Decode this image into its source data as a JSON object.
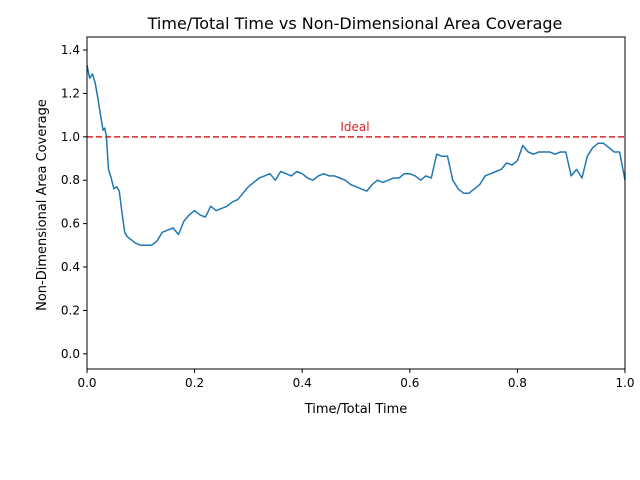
{
  "chart_data": {
    "type": "line",
    "title": "Time/Total Time vs Non-Dimensional Area Coverage",
    "xlabel": "Time/Total Time",
    "ylabel": "Non-Dimensional Area Coverage",
    "xlim": [
      0.0,
      1.0
    ],
    "ylim": [
      -0.07,
      1.46
    ],
    "xticks": [
      "0.0",
      "0.2",
      "0.4",
      "0.6",
      "0.8",
      "1.0"
    ],
    "yticks": [
      "0.0",
      "0.2",
      "0.4",
      "0.6",
      "0.8",
      "1.0",
      "1.2",
      "1.4"
    ],
    "grid": false,
    "series": [
      {
        "color": "#1f77b4",
        "x": [
          0.0,
          0.005,
          0.01,
          0.015,
          0.02,
          0.025,
          0.03,
          0.033,
          0.036,
          0.04,
          0.045,
          0.05,
          0.055,
          0.06,
          0.065,
          0.07,
          0.075,
          0.08,
          0.09,
          0.1,
          0.11,
          0.12,
          0.13,
          0.14,
          0.15,
          0.16,
          0.17,
          0.18,
          0.19,
          0.2,
          0.21,
          0.22,
          0.23,
          0.24,
          0.25,
          0.26,
          0.27,
          0.28,
          0.29,
          0.3,
          0.31,
          0.32,
          0.33,
          0.34,
          0.35,
          0.36,
          0.37,
          0.38,
          0.39,
          0.4,
          0.41,
          0.42,
          0.43,
          0.44,
          0.45,
          0.46,
          0.47,
          0.48,
          0.49,
          0.5,
          0.51,
          0.52,
          0.53,
          0.54,
          0.55,
          0.56,
          0.57,
          0.58,
          0.59,
          0.6,
          0.61,
          0.62,
          0.63,
          0.64,
          0.65,
          0.66,
          0.67,
          0.68,
          0.69,
          0.7,
          0.71,
          0.72,
          0.73,
          0.74,
          0.75,
          0.76,
          0.77,
          0.78,
          0.79,
          0.8,
          0.81,
          0.82,
          0.83,
          0.84,
          0.85,
          0.86,
          0.87,
          0.88,
          0.89,
          0.9,
          0.91,
          0.92,
          0.93,
          0.94,
          0.95,
          0.96,
          0.97,
          0.98,
          0.99,
          1.0
        ],
        "y": [
          1.33,
          1.27,
          1.29,
          1.25,
          1.18,
          1.1,
          1.03,
          1.04,
          1.0,
          0.85,
          0.81,
          0.76,
          0.77,
          0.75,
          0.65,
          0.56,
          0.54,
          0.53,
          0.51,
          0.5,
          0.5,
          0.5,
          0.52,
          0.56,
          0.57,
          0.58,
          0.55,
          0.61,
          0.64,
          0.66,
          0.64,
          0.63,
          0.68,
          0.66,
          0.67,
          0.68,
          0.7,
          0.71,
          0.74,
          0.77,
          0.79,
          0.81,
          0.82,
          0.83,
          0.8,
          0.84,
          0.83,
          0.82,
          0.84,
          0.83,
          0.81,
          0.8,
          0.82,
          0.83,
          0.82,
          0.82,
          0.81,
          0.8,
          0.78,
          0.77,
          0.76,
          0.75,
          0.78,
          0.8,
          0.79,
          0.8,
          0.81,
          0.81,
          0.83,
          0.83,
          0.82,
          0.8,
          0.82,
          0.81,
          0.92,
          0.91,
          0.91,
          0.8,
          0.76,
          0.74,
          0.74,
          0.76,
          0.78,
          0.82,
          0.83,
          0.84,
          0.85,
          0.88,
          0.87,
          0.89,
          0.96,
          0.93,
          0.92,
          0.93,
          0.93,
          0.93,
          0.92,
          0.93,
          0.93,
          0.82,
          0.85,
          0.81,
          0.91,
          0.95,
          0.97,
          0.97,
          0.95,
          0.93,
          0.93,
          0.8
        ]
      }
    ],
    "reference_line": {
      "y": 1.0,
      "label": "Ideal",
      "color": "#d62728",
      "label_x": 0.5,
      "label_y": 1.045
    }
  }
}
